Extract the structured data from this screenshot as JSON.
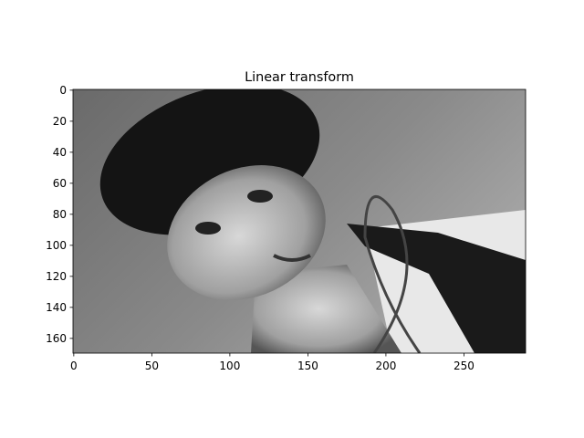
{
  "chart_data": {
    "type": "image",
    "title": "Linear transform",
    "xlim": [
      -0.5,
      289.5
    ],
    "ylim": [
      169.5,
      -0.5
    ],
    "xticks": [
      0,
      50,
      100,
      150,
      200,
      250
    ],
    "yticks": [
      0,
      20,
      40,
      60,
      80,
      100,
      120,
      140,
      160
    ],
    "colormap": "gray"
  }
}
